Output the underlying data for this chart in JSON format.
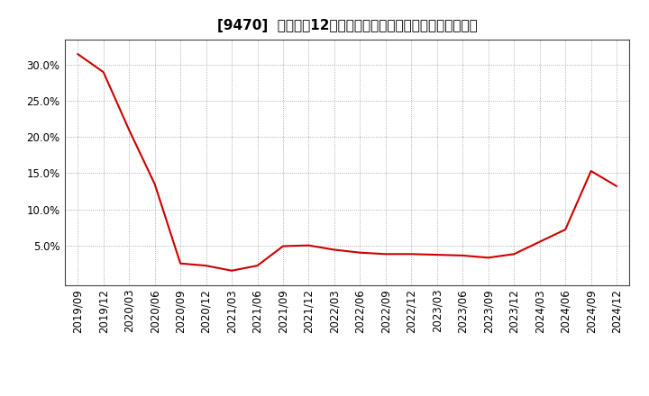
{
  "title": "[9470]  売上高の12か月移動合計の対前年同期増減率の推移",
  "line_color": "#cc0000",
  "background_color": "#ffffff",
  "plot_bg_color": "#ffffff",
  "grid_color": "#999999",
  "dates": [
    "2019/09",
    "2019/12",
    "2020/03",
    "2020/06",
    "2020/09",
    "2020/12",
    "2021/03",
    "2021/06",
    "2021/09",
    "2021/12",
    "2022/03",
    "2022/06",
    "2022/09",
    "2022/12",
    "2023/03",
    "2023/06",
    "2023/09",
    "2023/12",
    "2024/03",
    "2024/06",
    "2024/09",
    "2024/12"
  ],
  "values": [
    0.315,
    0.29,
    0.21,
    0.135,
    0.025,
    0.022,
    0.015,
    0.022,
    0.049,
    0.05,
    0.044,
    0.04,
    0.038,
    0.038,
    0.037,
    0.036,
    0.033,
    0.038,
    0.055,
    0.072,
    0.153,
    0.132
  ],
  "ylim": [
    -0.005,
    0.335
  ],
  "yticks": [
    0.05,
    0.1,
    0.15,
    0.2,
    0.25,
    0.3
  ],
  "tick_fontsize": 8.5,
  "title_fontsize": 11
}
